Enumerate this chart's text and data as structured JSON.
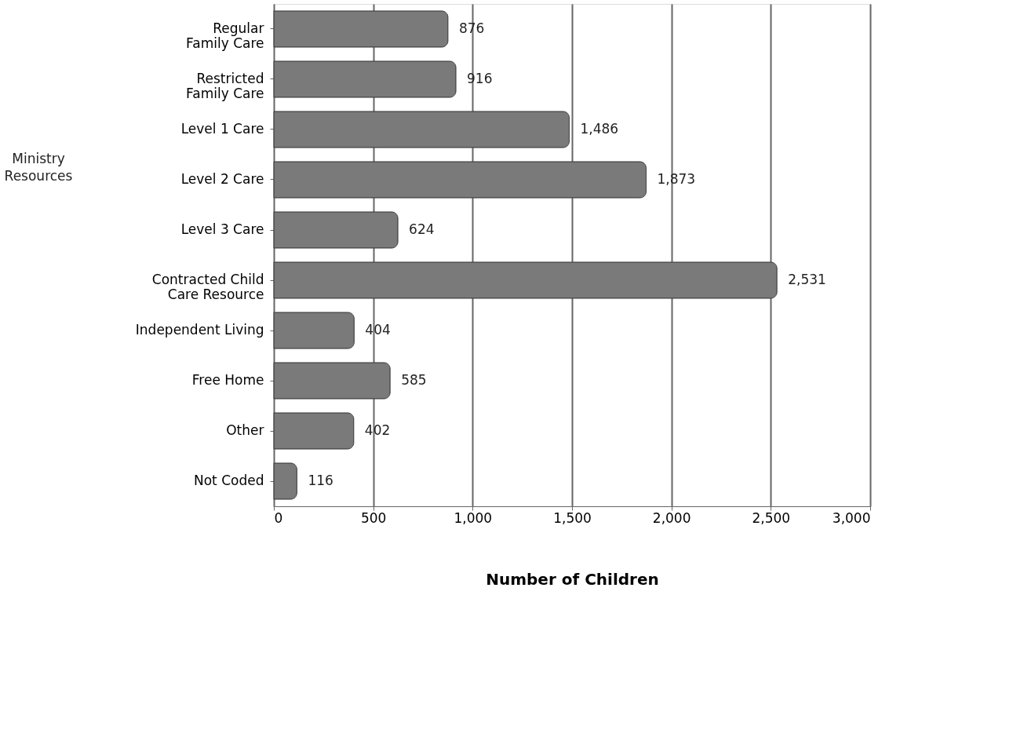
{
  "chart_data": {
    "type": "bar",
    "orientation": "horizontal",
    "xlabel": "Number of Children",
    "categories": [
      "Regular\nFamily Care",
      "Restricted\nFamily Care",
      "Level 1 Care",
      "Level 2 Care",
      "Level 3 Care",
      "Contracted Child\nCare Resource",
      "Independent Living",
      "Free Home",
      "Other",
      "Not Coded"
    ],
    "values": [
      876,
      916,
      1486,
      1873,
      624,
      2531,
      404,
      585,
      402,
      116
    ],
    "value_labels": [
      "876",
      "916",
      "1,486",
      "1,873",
      "624",
      "2,531",
      "404",
      "585",
      "402",
      "116"
    ],
    "color": "#7a7a7a",
    "xlim": [
      0,
      3000
    ],
    "xticks": [
      0,
      500,
      {
        "value": 1000,
        "label": "1,000"
      },
      {
        "value": 1500,
        "label": "1,500"
      },
      {
        "value": 2000,
        "label": "2,000"
      },
      {
        "value": 2500,
        "label": "2,500"
      },
      {
        "value": 3000,
        "label": "3,000"
      }
    ],
    "grid": "x",
    "annotations": [
      "Ministry\nResources"
    ]
  }
}
